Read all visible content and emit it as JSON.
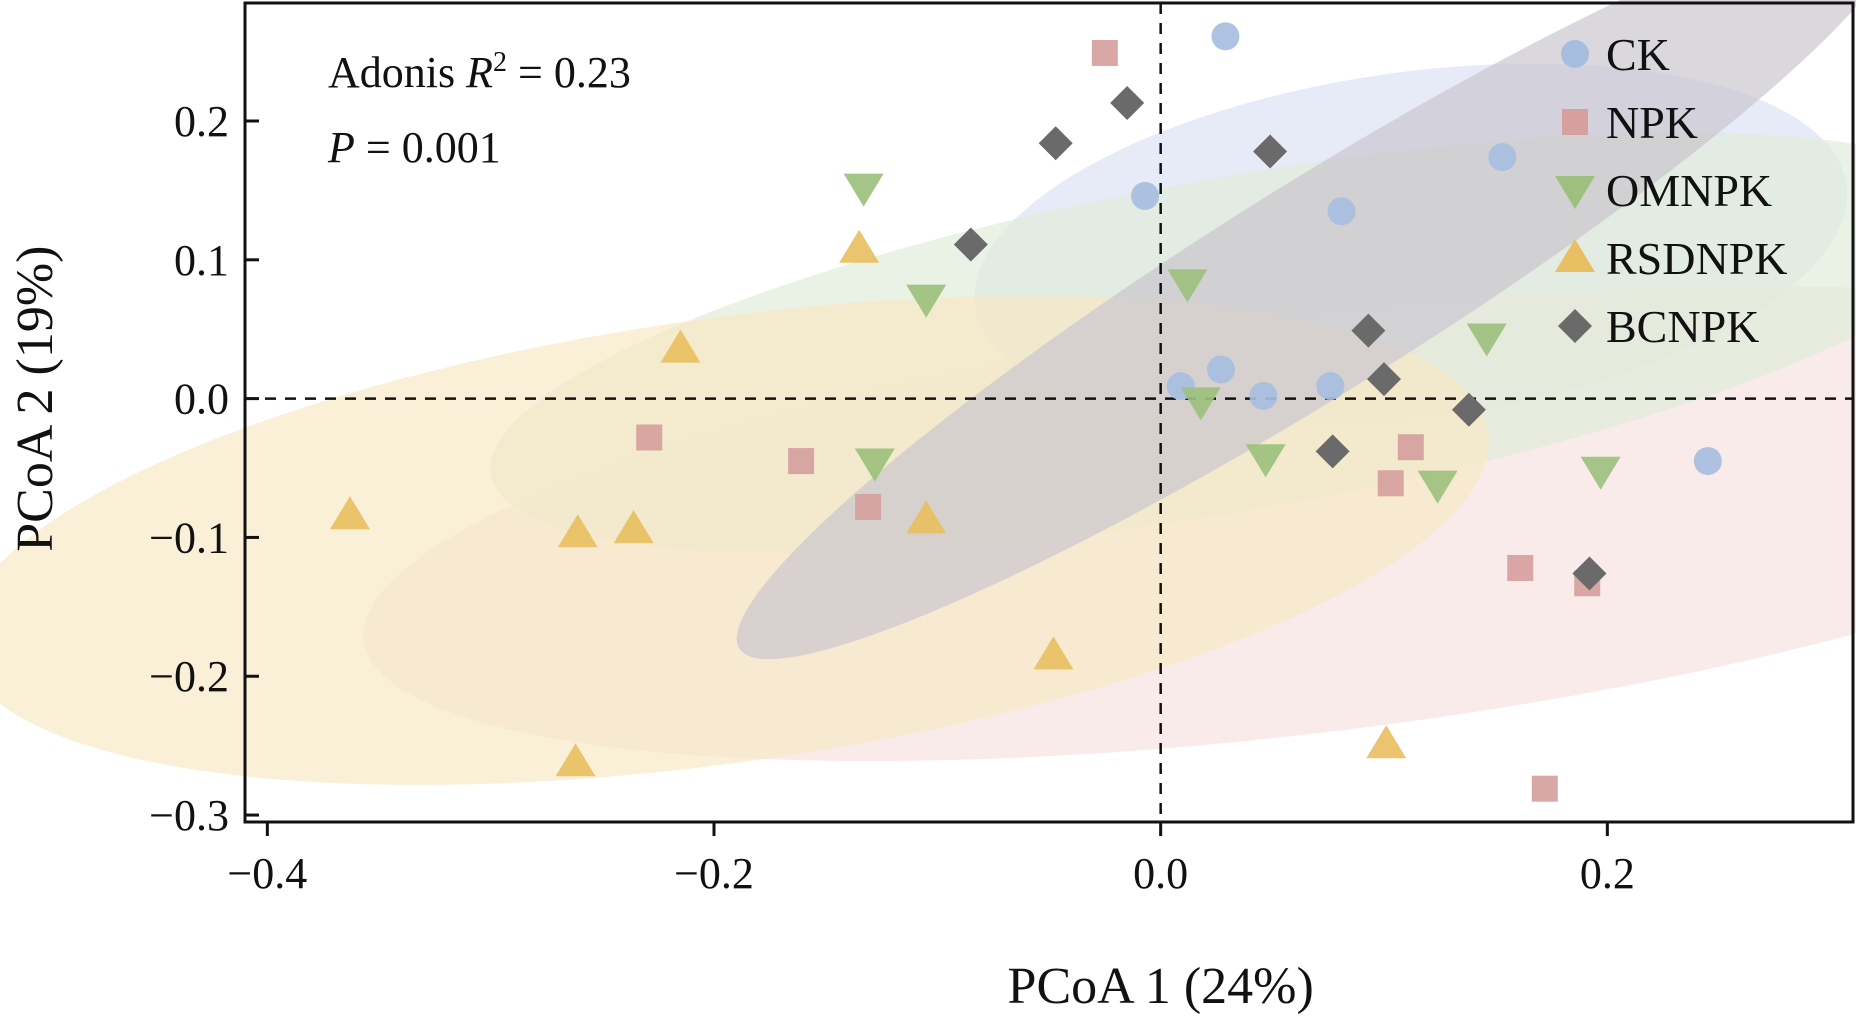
{
  "chart_data": {
    "type": "scatter",
    "title": "",
    "xlabel": "PCoA 1 (24%)",
    "ylabel": "PCoA 2 (19%)",
    "xlim": [
      -0.41,
      0.31
    ],
    "ylim": [
      -0.305,
      0.285
    ],
    "xticks": [
      -0.4,
      -0.2,
      0.0,
      0.2
    ],
    "xtick_labels": [
      "−0.4",
      "−0.2",
      "0.0",
      "0.2"
    ],
    "yticks": [
      -0.3,
      -0.2,
      -0.1,
      0.0,
      0.1,
      0.2
    ],
    "ytick_labels": [
      "−0.3",
      "−0.2",
      "−0.1",
      "0.0",
      "0.1",
      "0.2"
    ],
    "grid": false,
    "legend_position": "top-right",
    "annotation": {
      "line1_prefix": "Adonis ",
      "line1_italic": "R",
      "line1_sup": "2",
      "line1_suffix": " = 0.23",
      "line2_italic": "P",
      "line2_suffix": " = 0.001"
    },
    "series": [
      {
        "name": "CK",
        "marker": "circle",
        "color": "#a7bde0",
        "ellipse": {
          "cx": 0.112,
          "cy": 0.11,
          "rx": 0.197,
          "ry": 0.125,
          "angle": -8,
          "fill": "#dbe2f3"
        },
        "points": [
          [
            0.029,
            0.261
          ],
          [
            -0.007,
            0.146
          ],
          [
            0.081,
            0.135
          ],
          [
            0.153,
            0.174
          ],
          [
            0.009,
            0.009
          ],
          [
            0.027,
            0.021
          ],
          [
            0.046,
            0.002
          ],
          [
            0.076,
            0.009
          ],
          [
            0.245,
            -0.045
          ]
        ]
      },
      {
        "name": "NPK",
        "marker": "square",
        "color": "#d6a09e",
        "ellipse": {
          "cx": 0.07,
          "cy": -0.09,
          "rx": 0.43,
          "ry": 0.15,
          "angle": -7,
          "fill": "#f6e2df"
        },
        "points": [
          [
            -0.025,
            0.249
          ],
          [
            -0.229,
            -0.028
          ],
          [
            -0.161,
            -0.045
          ],
          [
            -0.131,
            -0.078
          ],
          [
            0.112,
            -0.035
          ],
          [
            0.103,
            -0.061
          ],
          [
            0.161,
            -0.122
          ],
          [
            0.191,
            -0.133
          ],
          [
            0.172,
            -0.281
          ]
        ]
      },
      {
        "name": "OMNPK",
        "marker": "triangle-down",
        "color": "#9dc07e",
        "ellipse": {
          "cx": 0.035,
          "cy": 0.04,
          "rx": 0.34,
          "ry": 0.12,
          "angle": -10,
          "fill": "#e0ecd8"
        },
        "points": [
          [
            -0.133,
            0.152
          ],
          [
            -0.105,
            0.072
          ],
          [
            0.012,
            0.083
          ],
          [
            0.018,
            -0.002
          ],
          [
            -0.128,
            -0.046
          ],
          [
            0.047,
            -0.043
          ],
          [
            0.124,
            -0.062
          ],
          [
            0.146,
            0.044
          ],
          [
            0.197,
            -0.052
          ]
        ]
      },
      {
        "name": "RSDNPK",
        "marker": "triangle-up",
        "color": "#e8bf62",
        "ellipse": {
          "cx": -0.195,
          "cy": -0.102,
          "rx": 0.345,
          "ry": 0.16,
          "angle": -8,
          "fill": "#f8e8c6"
        },
        "points": [
          [
            -0.135,
            0.108
          ],
          [
            -0.215,
            0.036
          ],
          [
            -0.363,
            -0.084
          ],
          [
            -0.261,
            -0.097
          ],
          [
            -0.236,
            -0.094
          ],
          [
            -0.105,
            -0.087
          ],
          [
            -0.048,
            -0.185
          ],
          [
            0.101,
            -0.249
          ],
          [
            -0.262,
            -0.262
          ]
        ]
      },
      {
        "name": "BCNPK",
        "marker": "diamond",
        "color": "#6a6a6a",
        "ellipse": {
          "cx": 0.07,
          "cy": 0.08,
          "rx": 0.305,
          "ry": 0.075,
          "angle": -32,
          "fill": "#cbc6cf"
        },
        "points": [
          [
            -0.015,
            0.213
          ],
          [
            -0.047,
            0.184
          ],
          [
            0.049,
            0.178
          ],
          [
            -0.085,
            0.111
          ],
          [
            0.093,
            0.049
          ],
          [
            0.1,
            0.014
          ],
          [
            0.138,
            -0.008
          ],
          [
            0.077,
            -0.038
          ],
          [
            0.192,
            -0.126
          ]
        ]
      }
    ]
  }
}
